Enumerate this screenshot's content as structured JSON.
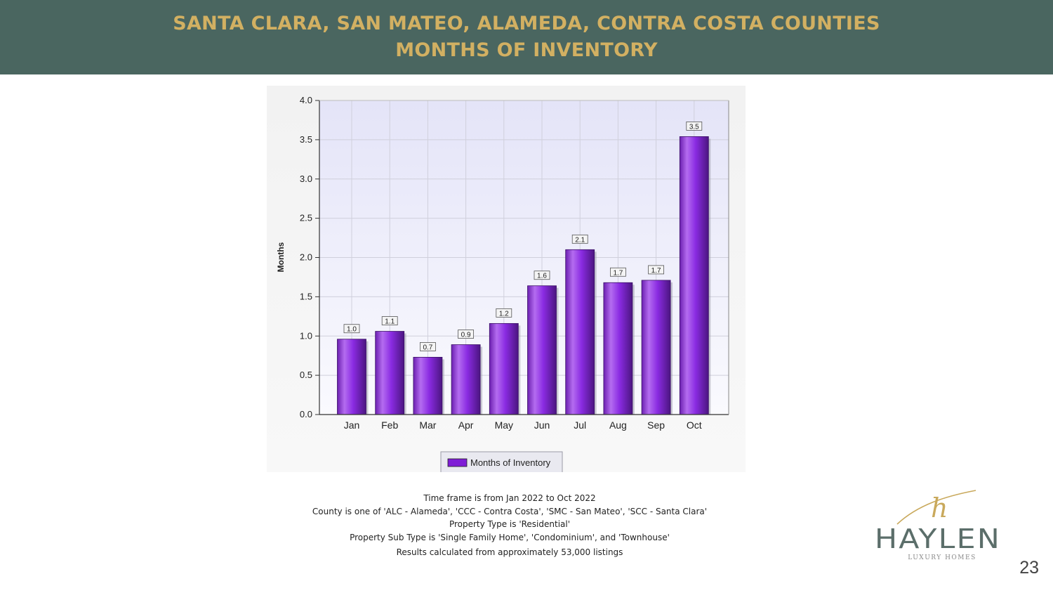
{
  "header": {
    "title_line1": "SANTA CLARA, SAN MATEO, ALAMEDA, CONTRA COSTA COUNTIES",
    "title_line2": "MONTHS OF INVENTORY"
  },
  "chart_data": {
    "type": "bar",
    "categories": [
      "Jan",
      "Feb",
      "Mar",
      "Apr",
      "May",
      "Jun",
      "Jul",
      "Aug",
      "Sep",
      "Oct"
    ],
    "series": [
      {
        "name": "Months of Inventory",
        "values": [
          0.96,
          1.06,
          0.73,
          0.89,
          1.16,
          1.64,
          2.1,
          1.68,
          1.71,
          3.54
        ],
        "labels": [
          "1.0",
          "1.1",
          "0.7",
          "0.9",
          "1.2",
          "1.6",
          "2.1",
          "1.7",
          "1.7",
          "3.5"
        ],
        "color": "#8a2be2"
      }
    ],
    "ylabel": "Months",
    "ylim": [
      0,
      4
    ],
    "yticks": [
      "0.0",
      "0.5",
      "1.0",
      "1.5",
      "2.0",
      "2.5",
      "3.0",
      "3.5",
      "4.0"
    ],
    "grid": true,
    "legend_position": "bottom-center"
  },
  "notes": [
    "Time frame is from Jan 2022 to Oct 2022",
    "County is one of 'ALC - Alameda', 'CCC - Contra Costa', 'SMC - San Mateo', 'SCC - Santa Clara'",
    "Property Type is 'Residential'",
    "Property Sub Type is 'Single Family Home', 'Condominium', and 'Townhouse'",
    "Results calculated from approximately 53,000 listings"
  ],
  "logo": {
    "name": "HAYLEN",
    "tagline": "LUXURY HOMES",
    "mark": "h",
    "accent": "#c9a95c",
    "text_color": "#5b6e6a"
  },
  "page_number": "23"
}
